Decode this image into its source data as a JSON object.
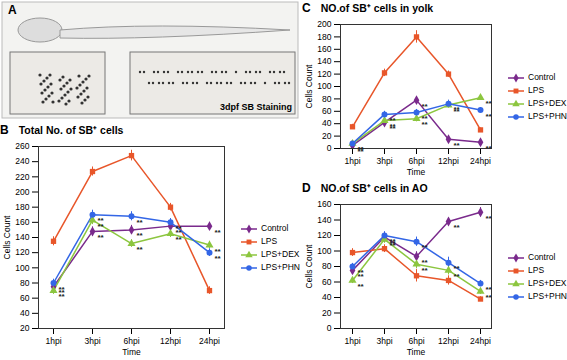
{
  "image_panel": {
    "label": "A",
    "caption": "3dpf SB Staining"
  },
  "chart_data": [
    {
      "type": "line",
      "panel": "B",
      "title": "Total No. of SB⁺ cells",
      "x_label": "Time",
      "y_label": "Cells Count",
      "categories": [
        "1hpi",
        "3hpi",
        "6hpi",
        "12hpi",
        "24hpi"
      ],
      "ylim": [
        20,
        260
      ],
      "yticks": [
        20,
        40,
        60,
        80,
        100,
        120,
        140,
        160,
        180,
        200,
        220,
        240,
        260
      ],
      "grid": false,
      "legend": "right",
      "series": [
        {
          "name": "Control",
          "color": "#7a2a8c",
          "marker": "diamond",
          "values": [
            75,
            148,
            150,
            155,
            155
          ],
          "errors": [
            5,
            6,
            6,
            5,
            5
          ],
          "annotations": [
            "**",
            "**",
            "**",
            "**",
            "**"
          ]
        },
        {
          "name": "LPS",
          "color": "#e8562a",
          "marker": "square",
          "values": [
            135,
            227,
            248,
            180,
            70
          ],
          "errors": [
            6,
            6,
            7,
            5,
            5
          ],
          "annotations": [
            null,
            null,
            null,
            null,
            null
          ]
        },
        {
          "name": "LPS+DEX",
          "color": "#8cc63f",
          "marker": "triangle",
          "values": [
            70,
            163,
            132,
            145,
            130
          ],
          "errors": [
            5,
            6,
            5,
            5,
            5
          ],
          "annotations": [
            "**",
            "**",
            "**",
            "**",
            "**"
          ]
        },
        {
          "name": "LPS+PHN",
          "color": "#3366e6",
          "marker": "circle",
          "values": [
            80,
            170,
            168,
            160,
            120
          ],
          "errors": [
            5,
            6,
            6,
            5,
            5
          ],
          "annotations": [
            "**",
            "**",
            "**",
            "**",
            "**"
          ]
        }
      ]
    },
    {
      "type": "line",
      "panel": "C",
      "title": "NO.of SB⁺ cells in yolk",
      "x_label": "Time",
      "y_label": "Cells Count",
      "categories": [
        "1hpi",
        "3hpi",
        "6hpi",
        "12hpi",
        "24hpi"
      ],
      "ylim": [
        0,
        200
      ],
      "yticks": [
        0,
        20,
        40,
        60,
        80,
        100,
        120,
        140,
        160,
        180,
        200
      ],
      "grid": false,
      "legend": "right",
      "series": [
        {
          "name": "Control",
          "color": "#7a2a8c",
          "marker": "diamond",
          "values": [
            5,
            42,
            78,
            15,
            10
          ],
          "errors": [
            2,
            5,
            5,
            3,
            2
          ],
          "annotations": [
            "**",
            "**",
            "**",
            "**",
            "**"
          ]
        },
        {
          "name": "LPS",
          "color": "#e8562a",
          "marker": "square",
          "values": [
            35,
            122,
            180,
            120,
            30
          ],
          "errors": [
            4,
            6,
            10,
            5,
            3
          ],
          "annotations": [
            null,
            null,
            null,
            null,
            null
          ]
        },
        {
          "name": "LPS+DEX",
          "color": "#8cc63f",
          "marker": "triangle",
          "values": [
            8,
            45,
            48,
            70,
            82
          ],
          "errors": [
            2,
            5,
            5,
            5,
            4
          ],
          "annotations": [
            "**",
            "**",
            "**",
            "**",
            "**"
          ]
        },
        {
          "name": "LPS+PHN",
          "color": "#3366e6",
          "marker": "circle",
          "values": [
            8,
            55,
            58,
            72,
            62
          ],
          "errors": [
            2,
            5,
            5,
            6,
            4
          ],
          "annotations": [
            "**",
            "**",
            "**",
            "**",
            "**"
          ]
        }
      ]
    },
    {
      "type": "line",
      "panel": "D",
      "title": "NO.of SB⁺ cells in AO",
      "x_label": "Time",
      "y_label": "Cells Count",
      "categories": [
        "1hpi",
        "3hpi",
        "6hpi",
        "12hpi",
        "24hpi"
      ],
      "ylim": [
        0,
        160
      ],
      "yticks": [
        0,
        20,
        40,
        60,
        80,
        100,
        120,
        140,
        160
      ],
      "grid": false,
      "legend": "right",
      "series": [
        {
          "name": "Control",
          "color": "#7a2a8c",
          "marker": "diamond",
          "values": [
            75,
            118,
            93,
            138,
            150
          ],
          "errors": [
            4,
            5,
            6,
            4,
            6
          ],
          "annotations": [
            "**",
            "**",
            "**",
            "**",
            "**"
          ]
        },
        {
          "name": "LPS",
          "color": "#e8562a",
          "marker": "square",
          "values": [
            98,
            103,
            68,
            62,
            38
          ],
          "errors": [
            5,
            5,
            8,
            6,
            3
          ],
          "annotations": [
            null,
            null,
            null,
            null,
            null
          ]
        },
        {
          "name": "LPS+DEX",
          "color": "#8cc63f",
          "marker": "triangle",
          "values": [
            62,
            115,
            83,
            75,
            48
          ],
          "errors": [
            4,
            5,
            6,
            6,
            4
          ],
          "annotations": [
            "**",
            "**",
            "**",
            "**",
            "**"
          ]
        },
        {
          "name": "LPS+PHN",
          "color": "#3366e6",
          "marker": "circle",
          "values": [
            80,
            120,
            112,
            85,
            58
          ],
          "errors": [
            4,
            5,
            6,
            7,
            4
          ],
          "annotations": [
            "**",
            "**",
            "**",
            "**",
            "**"
          ]
        }
      ]
    }
  ]
}
